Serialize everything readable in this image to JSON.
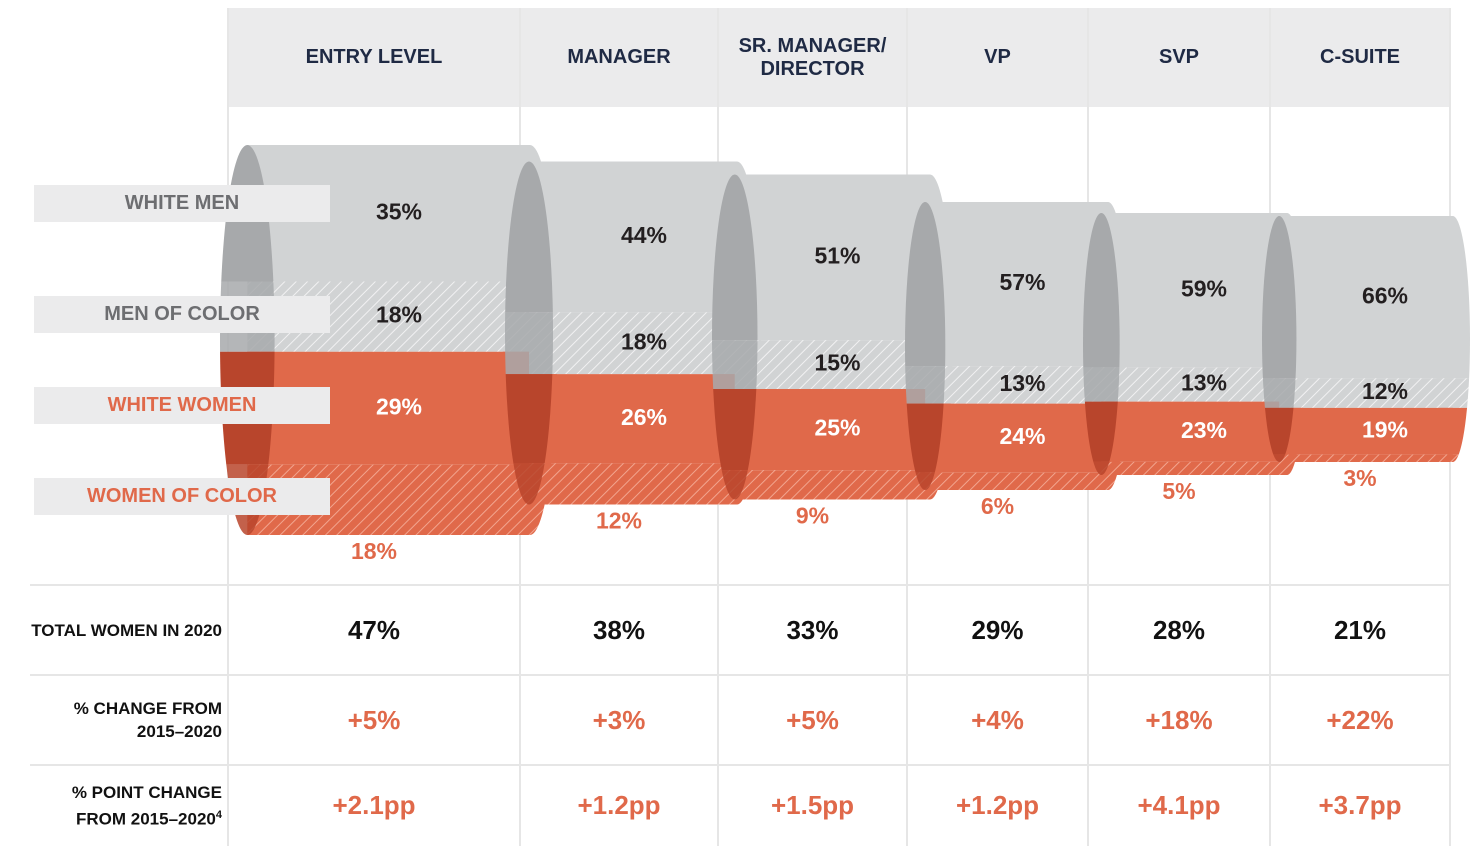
{
  "chart_data": {
    "type": "cylinder",
    "categories": [
      "ENTRY LEVEL",
      "MANAGER",
      "SR. MANAGER/\nDIRECTOR",
      "VP",
      "SVP",
      "C-SUITE"
    ],
    "series": [
      {
        "name": "WHITE MEN",
        "color": "#d1d3d4",
        "face_color": "#a7a9ab",
        "text_color": "#6d6e71",
        "label_color": "#231f20",
        "hatched": false,
        "values": [
          35,
          44,
          51,
          57,
          59,
          66
        ],
        "value_labels": [
          "35%",
          "44%",
          "51%",
          "57%",
          "59%",
          "66%"
        ]
      },
      {
        "name": "MEN OF COLOR",
        "color": "#d1d3d4",
        "face_color": "#a7a9ab",
        "text_color": "#6d6e71",
        "label_color": "#231f20",
        "hatched": true,
        "values": [
          18,
          18,
          15,
          13,
          13,
          12
        ],
        "value_labels": [
          "18%",
          "18%",
          "15%",
          "13%",
          "13%",
          "12%"
        ]
      },
      {
        "name": "WHITE WOMEN",
        "color": "#e0694a",
        "face_color": "#b8452c",
        "text_color": "#e0694a",
        "label_color": "#ffffff",
        "hatched": false,
        "values": [
          29,
          26,
          25,
          24,
          23,
          19
        ],
        "value_labels": [
          "29%",
          "26%",
          "25%",
          "24%",
          "23%",
          "19%"
        ]
      },
      {
        "name": "WOMEN OF COLOR",
        "color": "#e0694a",
        "face_color": "#b8452c",
        "text_color": "#e0694a",
        "label_color": "#e0694a",
        "hatched": true,
        "values": [
          18,
          12,
          9,
          6,
          5,
          3
        ],
        "value_labels": [
          "18%",
          "12%",
          "9%",
          "6%",
          "5%",
          "3%"
        ]
      }
    ],
    "rows": [
      {
        "label": "TOTAL WOMEN IN 2020",
        "color": "#111111",
        "cells": [
          "47%",
          "38%",
          "33%",
          "29%",
          "28%",
          "21%"
        ]
      },
      {
        "label": "% CHANGE FROM 2015–2020",
        "color": "#e0694a",
        "cells": [
          "+5%",
          "+3%",
          "+5%",
          "+4%",
          "+18%",
          "+22%"
        ]
      },
      {
        "label": "% POINT CHANGE FROM 2015–2020",
        "footnote": "4",
        "color": "#e0694a",
        "cells": [
          "+2.1pp",
          "+1.2pp",
          "+1.5pp",
          "+1.2pp",
          "+4.1pp",
          "+3.7pp"
        ]
      }
    ]
  }
}
